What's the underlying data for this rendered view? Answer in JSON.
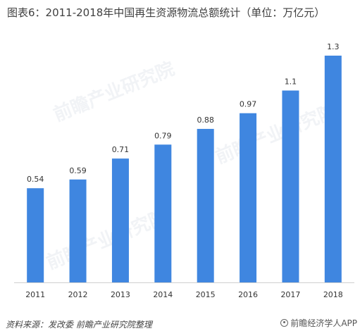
{
  "header": {
    "title": "图表6：2011-2018年中国再生资源物流总额统计（单位：万亿元）"
  },
  "chart_data": {
    "type": "bar",
    "title": "图表6：2011-2018年中国再生资源物流总额统计（单位：万亿元）",
    "categories": [
      "2011",
      "2012",
      "2013",
      "2014",
      "2015",
      "2016",
      "2017",
      "2018"
    ],
    "values": [
      0.54,
      0.59,
      0.71,
      0.79,
      0.88,
      0.97,
      1.1,
      1.3
    ],
    "value_labels": [
      "0.54",
      "0.59",
      "0.71",
      "0.79",
      "0.88",
      "0.97",
      "1.1",
      "1.3"
    ],
    "xlabel": "",
    "ylabel": "",
    "ylim": [
      0,
      1.4
    ],
    "grid": false,
    "legend": "none",
    "bar_color": "#3F86E0"
  },
  "footer": {
    "source": "资料来源：发改委 前瞻产业研究院整理",
    "brand": "前瞻经济学人APP"
  },
  "watermark": {
    "text": "前瞻产业研究院"
  }
}
